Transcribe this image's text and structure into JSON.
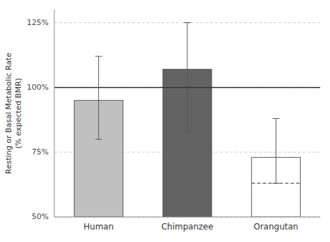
{
  "chart_data": {
    "type": "bar",
    "categories": [
      "Human",
      "Chimpanzee",
      "Orangutan"
    ],
    "values": [
      95,
      107,
      73
    ],
    "colors": [
      "#c0c0c0",
      "#636363",
      "#ffffff"
    ],
    "error_upper": [
      17,
      18,
      15
    ],
    "error_lower": [
      15,
      24,
      10
    ],
    "inner_lines": [
      null,
      null,
      63
    ],
    "reference_line": 100,
    "ylabel": "Resting or Basal Metabolic Rate\n(% expected BMR)",
    "ylim": [
      50,
      130
    ],
    "yticks": [
      {
        "value": 50,
        "label": "50%"
      },
      {
        "value": 75,
        "label": "75%"
      },
      {
        "value": 100,
        "label": "100%"
      },
      {
        "value": 125,
        "label": "125%"
      }
    ],
    "grid": true
  }
}
